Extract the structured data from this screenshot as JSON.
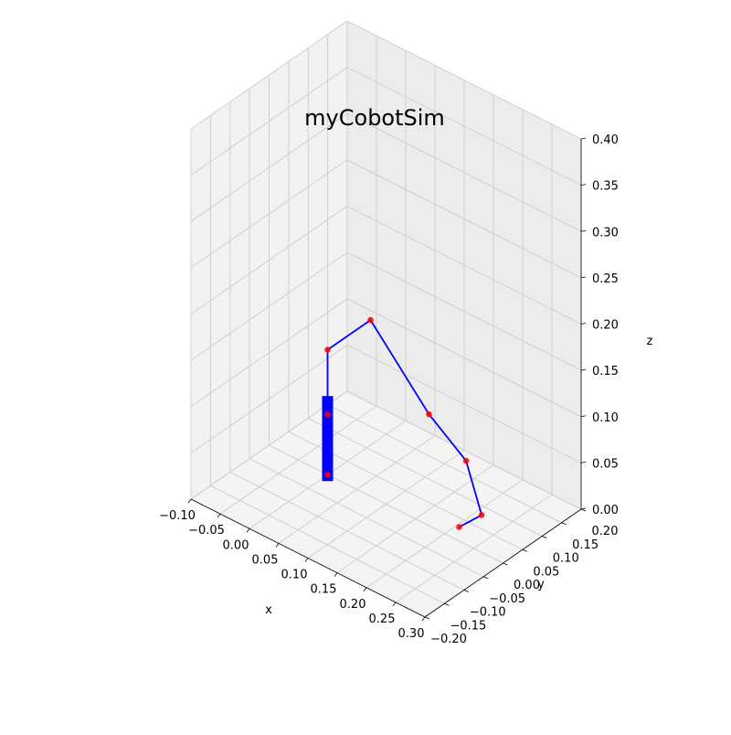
{
  "chart_data": {
    "type": "line3d",
    "title": "myCobotSim",
    "xlabel": "x",
    "ylabel": "y",
    "zlabel": "z",
    "xlim": [
      -0.1,
      0.3
    ],
    "ylim": [
      -0.2,
      0.2
    ],
    "zlim": [
      0.0,
      0.4
    ],
    "xticks": [
      "−0.10",
      "−0.05",
      "0.00",
      "0.05",
      "0.10",
      "0.15",
      "0.20",
      "0.25",
      "0.30"
    ],
    "yticks": [
      "−0.20",
      "−0.15",
      "−0.10",
      "−0.05",
      "0.00",
      "0.05",
      "0.10",
      "0.15",
      "0.20"
    ],
    "zticks": [
      "0.00",
      "0.05",
      "0.10",
      "0.15",
      "0.20",
      "0.25",
      "0.30",
      "0.35",
      "0.40"
    ],
    "grid": true,
    "colors": {
      "link": "#0000ff",
      "joint": "#ff0000",
      "pane_left": "#f2f2f2",
      "pane_right": "#ececec",
      "pane_floor": "#f4f4f4",
      "grid": "#cfcfcf"
    },
    "base": {
      "name": "base",
      "x": 0.0,
      "y": 0.0,
      "z_bottom": 0.0,
      "z_top": 0.08
    },
    "series": [
      {
        "name": "",
        "points": [
          {
            "x": 0.0,
            "y": 0.0,
            "z": 0.0
          },
          {
            "x": 0.0,
            "y": 0.0,
            "z": 0.065
          },
          {
            "x": 0.0,
            "y": 0.0,
            "z": 0.135
          },
          {
            "x": 0.0,
            "y": 0.11,
            "z": 0.135
          },
          {
            "x": 0.1,
            "y": 0.11,
            "z": 0.065
          },
          {
            "x": 0.17,
            "y": 0.1,
            "z": 0.04
          },
          {
            "x": 0.21,
            "y": 0.08,
            "z": 0.0
          },
          {
            "x": 0.205,
            "y": 0.03,
            "z": 0.0
          }
        ]
      }
    ]
  }
}
